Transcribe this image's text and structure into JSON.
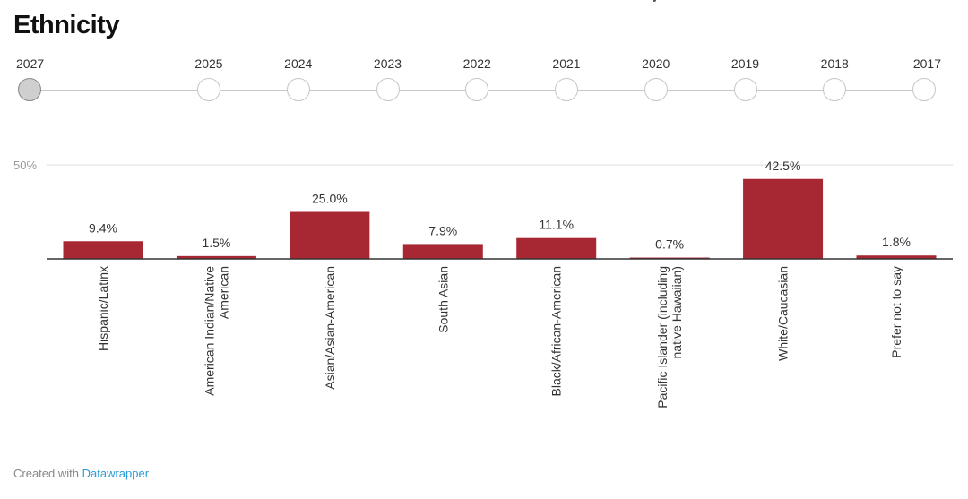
{
  "title": "Ethnicity",
  "timeline": {
    "years": [
      "2027",
      "2025",
      "2024",
      "2023",
      "2022",
      "2021",
      "2020",
      "2019",
      "2018",
      "2017"
    ],
    "selected": "2027"
  },
  "chart_data": {
    "type": "bar",
    "categories": [
      "Hispanic/Latinx",
      "American Indian/Native American",
      "Asian/Asian-American",
      "South Asian",
      "Black/African-American",
      "Pacific Islander (including native Hawaiian)",
      "White/Caucasian",
      "Prefer not to say"
    ],
    "category_lines": [
      [
        "Hispanic/Latinx"
      ],
      [
        "American Indian/Native",
        "American"
      ],
      [
        "Asian/Asian-American"
      ],
      [
        "South Asian"
      ],
      [
        "Black/African-American"
      ],
      [
        "Pacific Islander (including",
        "native Hawaiian)"
      ],
      [
        "White/Caucasian"
      ],
      [
        "Prefer not to say"
      ]
    ],
    "values": [
      9.4,
      1.5,
      25.0,
      7.9,
      11.1,
      0.7,
      42.5,
      1.8
    ],
    "value_labels": [
      "9.4%",
      "1.5%",
      "25.0%",
      "7.9%",
      "11.1%",
      "0.7%",
      "42.5%",
      "1.8%"
    ],
    "gridline_labels": [
      "50%"
    ],
    "ylim": [
      0,
      50
    ],
    "bar_color": "#a72732"
  },
  "footer": {
    "prefix": "Created with",
    "link": "Datawrapper"
  }
}
